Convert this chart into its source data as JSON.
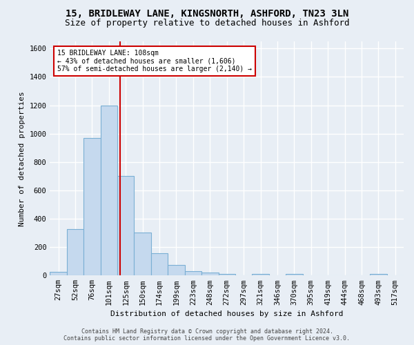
{
  "title_line1": "15, BRIDLEWAY LANE, KINGSNORTH, ASHFORD, TN23 3LN",
  "title_line2": "Size of property relative to detached houses in Ashford",
  "xlabel": "Distribution of detached houses by size in Ashford",
  "ylabel": "Number of detached properties",
  "footer_line1": "Contains HM Land Registry data © Crown copyright and database right 2024.",
  "footer_line2": "Contains public sector information licensed under the Open Government Licence v3.0.",
  "bar_labels": [
    "27sqm",
    "52sqm",
    "76sqm",
    "101sqm",
    "125sqm",
    "150sqm",
    "174sqm",
    "199sqm",
    "223sqm",
    "248sqm",
    "272sqm",
    "297sqm",
    "321sqm",
    "346sqm",
    "370sqm",
    "395sqm",
    "419sqm",
    "444sqm",
    "468sqm",
    "493sqm",
    "517sqm"
  ],
  "bar_values": [
    27,
    325,
    970,
    1200,
    700,
    305,
    155,
    75,
    30,
    20,
    12,
    0,
    10,
    0,
    12,
    0,
    0,
    0,
    0,
    10,
    0
  ],
  "bar_color": "#c5d9ee",
  "bar_edgecolor": "#7aafd4",
  "background_color": "#e8eef5",
  "grid_color": "#ffffff",
  "vline_x_idx": 3.65,
  "vline_color": "#cc0000",
  "annotation_line1": "15 BRIDLEWAY LANE: 108sqm",
  "annotation_line2": "← 43% of detached houses are smaller (1,606)",
  "annotation_line3": "57% of semi-detached houses are larger (2,140) →",
  "annotation_box_edgecolor": "#cc0000",
  "annotation_box_facecolor": "#ffffff",
  "ylim": [
    0,
    1650
  ],
  "yticks": [
    0,
    200,
    400,
    600,
    800,
    1000,
    1200,
    1400,
    1600
  ],
  "title1_fontsize": 10,
  "title2_fontsize": 9,
  "axis_label_fontsize": 8,
  "tick_fontsize": 7.5,
  "footer_fontsize": 6
}
